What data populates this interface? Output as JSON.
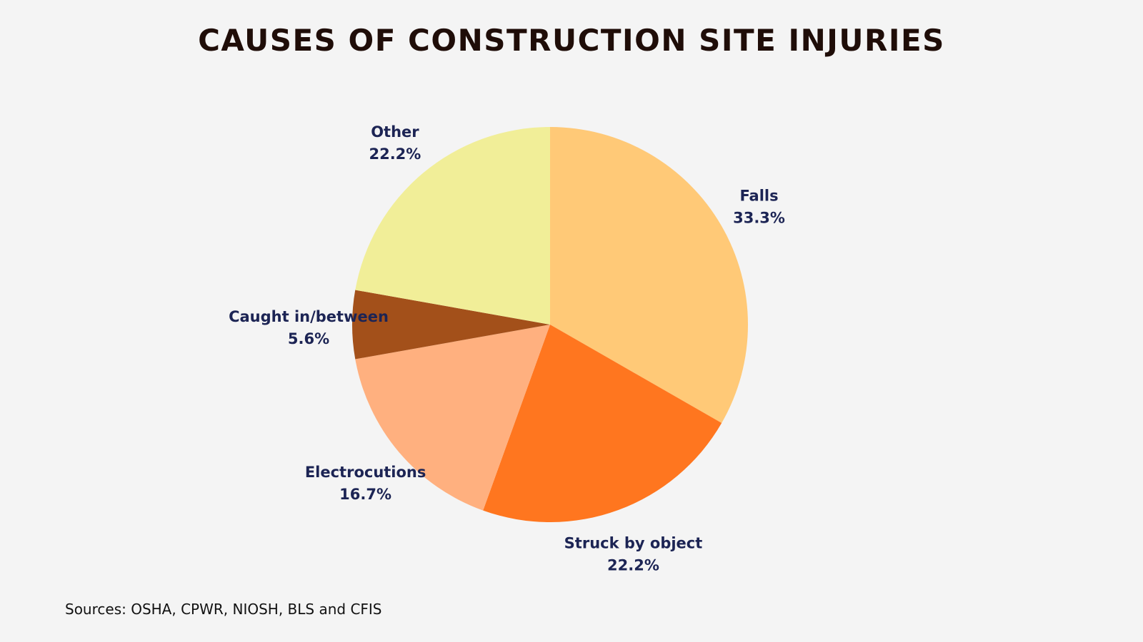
{
  "chart_data": {
    "type": "pie",
    "title": "CAUSES OF CONSTRUCTION SITE INJURIES",
    "slices": [
      {
        "name": "Falls",
        "value": 33.3,
        "label": "33.3%",
        "color": "#ffc977"
      },
      {
        "name": "Struck by object",
        "value": 22.2,
        "label": "22.2%",
        "color": "#ff761f"
      },
      {
        "name": "Electrocutions",
        "value": 16.7,
        "label": "16.7%",
        "color": "#ffb07f"
      },
      {
        "name": "Caught in/between",
        "value": 5.6,
        "label": "5.6%",
        "color": "#a3501a"
      },
      {
        "name": "Other",
        "value": 22.2,
        "label": "22.2%",
        "color": "#f1ee98"
      }
    ],
    "start": "top",
    "direction": "clockwise"
  },
  "footer": {
    "sources": "Sources: OSHA, CPWR, NIOSH, BLS and CFIS"
  }
}
